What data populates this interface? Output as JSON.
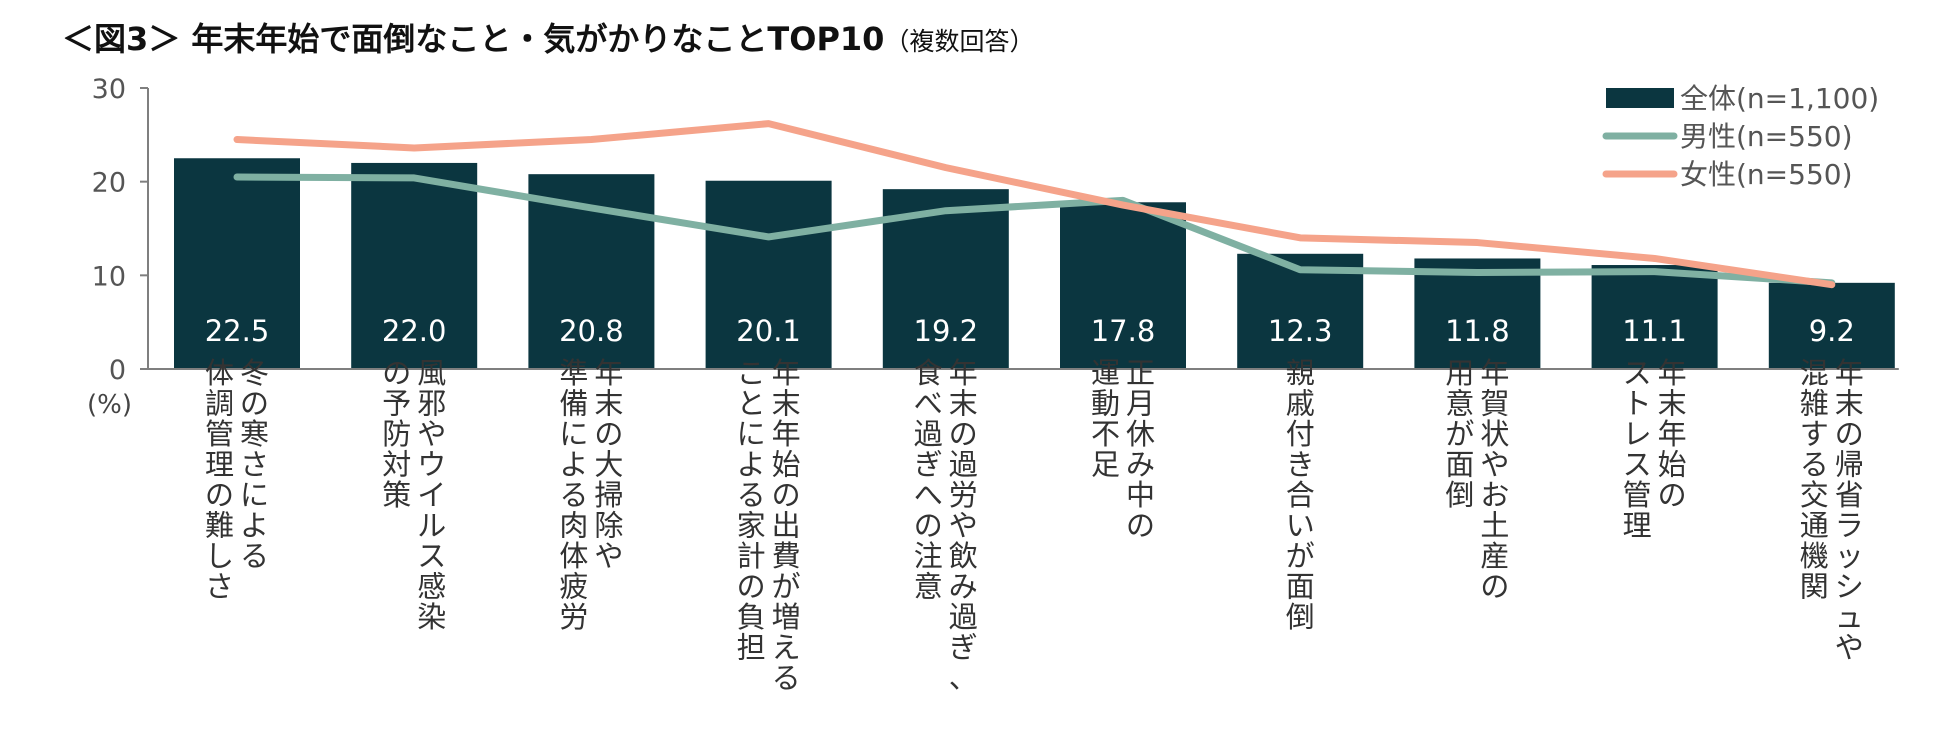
{
  "chart_data": {
    "type": "bar",
    "title": "＜図3＞ 年末年始で面倒なこと・気がかりなことTOP10",
    "subtitle": "（複数回答）",
    "ylabel": "(%)",
    "ylim": [
      0,
      30
    ],
    "yticks": [
      "0",
      "10",
      "20",
      "30"
    ],
    "grid": false,
    "legend_position": "top-right",
    "categories": [
      [
        "冬の寒さによる",
        "体調管理の難しさ"
      ],
      [
        "風邪やウイルス感染",
        "の予防対策"
      ],
      [
        "年末の大掃除や",
        "準備による肉体疲労"
      ],
      [
        "年末年始の出費が増える",
        "ことによる家計の負担"
      ],
      [
        "年末の過労や飲み過ぎ、",
        "食べ過ぎへの注意"
      ],
      [
        "正月休み中の",
        "運動不足"
      ],
      [
        "親戚付き合いが面倒"
      ],
      [
        "年賀状やお土産の",
        "用意が面倒"
      ],
      [
        "年末年始の",
        "ストレス管理"
      ],
      [
        "年末の帰省ラッシュや",
        "混雑する交通機関"
      ]
    ],
    "series": [
      {
        "name": "全体(n=1,100)",
        "kind": "bar",
        "color": "#0b3640",
        "values": [
          22.5,
          22.0,
          20.8,
          20.1,
          19.2,
          17.8,
          12.3,
          11.8,
          11.1,
          9.2
        ],
        "labels": [
          "22.5",
          "22.0",
          "20.8",
          "20.1",
          "19.2",
          "17.8",
          "12.3",
          "11.8",
          "11.1",
          "9.2"
        ]
      },
      {
        "name": "男性(n=550)",
        "kind": "line",
        "color": "#7fb0a2",
        "values": [
          20.5,
          20.4,
          17.2,
          14.1,
          16.9,
          18.0,
          10.6,
          10.3,
          10.4,
          9.2
        ]
      },
      {
        "name": "女性(n=550)",
        "kind": "line",
        "color": "#f5a38a",
        "values": [
          24.5,
          23.6,
          24.5,
          26.2,
          21.5,
          17.5,
          14.0,
          13.5,
          11.8,
          9.0
        ]
      }
    ]
  }
}
